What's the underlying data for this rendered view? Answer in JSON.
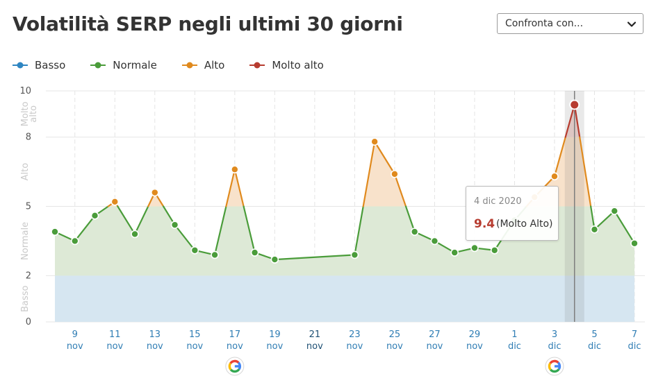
{
  "header": {
    "title": "Volatilità SERP negli ultimi 30 giorni",
    "compare_label": "Confronta con..."
  },
  "legend": [
    {
      "label": "Basso",
      "color": "#2f86c2"
    },
    {
      "label": "Normale",
      "color": "#4a9c3a"
    },
    {
      "label": "Alto",
      "color": "#e08a1e"
    },
    {
      "label": "Molto alto",
      "color": "#b73c30"
    }
  ],
  "tooltip": {
    "date": "4 dic 2020",
    "value": "9.4",
    "level": "(Molto Alto)"
  },
  "chart_data": {
    "type": "area",
    "title": "Volatilità SERP negli ultimi 30 giorni",
    "y_range": [
      0,
      10
    ],
    "y_ticks": [
      0,
      2,
      5,
      8,
      10
    ],
    "zones": [
      {
        "label": "Basso",
        "from": 0,
        "to": 2,
        "color": "#d6e6f1"
      },
      {
        "label": "Normale",
        "from": 2,
        "to": 5,
        "color": "#dde9d6"
      },
      {
        "label": "Alto",
        "from": 5,
        "to": 8,
        "color": "#f8e2cb"
      },
      {
        "label": "Molto alto",
        "from": 8,
        "to": 10,
        "color": "#f1d6d2"
      }
    ],
    "x_ticks": [
      {
        "day": "9",
        "month": "nov"
      },
      {
        "day": "11",
        "month": "nov"
      },
      {
        "day": "13",
        "month": "nov"
      },
      {
        "day": "15",
        "month": "nov"
      },
      {
        "day": "17",
        "month": "nov"
      },
      {
        "day": "19",
        "month": "nov"
      },
      {
        "day": "21",
        "month": "nov"
      },
      {
        "day": "23",
        "month": "nov"
      },
      {
        "day": "25",
        "month": "nov"
      },
      {
        "day": "27",
        "month": "nov"
      },
      {
        "day": "29",
        "month": "nov"
      },
      {
        "day": "1",
        "month": "dic"
      },
      {
        "day": "3",
        "month": "dic"
      },
      {
        "day": "5",
        "month": "dic"
      },
      {
        "day": "7",
        "month": "dic"
      }
    ],
    "x_start": "2020-11-08",
    "x_end": "2020-12-07",
    "grid": true,
    "legend_position": "top-left",
    "series": [
      {
        "date": "2020-11-08",
        "value": 3.9
      },
      {
        "date": "2020-11-09",
        "value": 3.5
      },
      {
        "date": "2020-11-10",
        "value": 4.6
      },
      {
        "date": "2020-11-11",
        "value": 5.2
      },
      {
        "date": "2020-11-12",
        "value": 3.8
      },
      {
        "date": "2020-11-13",
        "value": 5.6
      },
      {
        "date": "2020-11-14",
        "value": 4.2
      },
      {
        "date": "2020-11-15",
        "value": 3.1
      },
      {
        "date": "2020-11-16",
        "value": 2.9
      },
      {
        "date": "2020-11-17",
        "value": 6.6
      },
      {
        "date": "2020-11-18",
        "value": 3.0
      },
      {
        "date": "2020-11-19",
        "value": 2.7
      },
      {
        "date": "2020-11-23",
        "value": 2.9
      },
      {
        "date": "2020-11-24",
        "value": 7.8
      },
      {
        "date": "2020-11-25",
        "value": 6.4
      },
      {
        "date": "2020-11-26",
        "value": 3.9
      },
      {
        "date": "2020-11-27",
        "value": 3.5
      },
      {
        "date": "2020-11-28",
        "value": 3.0
      },
      {
        "date": "2020-11-29",
        "value": 3.2
      },
      {
        "date": "2020-11-30",
        "value": 3.1
      },
      {
        "date": "2020-12-01",
        "value": 4.4
      },
      {
        "date": "2020-12-02",
        "value": 5.4
      },
      {
        "date": "2020-12-03",
        "value": 6.3
      },
      {
        "date": "2020-12-04",
        "value": 9.4
      },
      {
        "date": "2020-12-05",
        "value": 4.0
      },
      {
        "date": "2020-12-06",
        "value": 4.8
      },
      {
        "date": "2020-12-07",
        "value": 3.4
      }
    ],
    "highlight_date": "2020-12-04",
    "google_update_dates": [
      "2020-11-17",
      "2020-12-03"
    ]
  }
}
